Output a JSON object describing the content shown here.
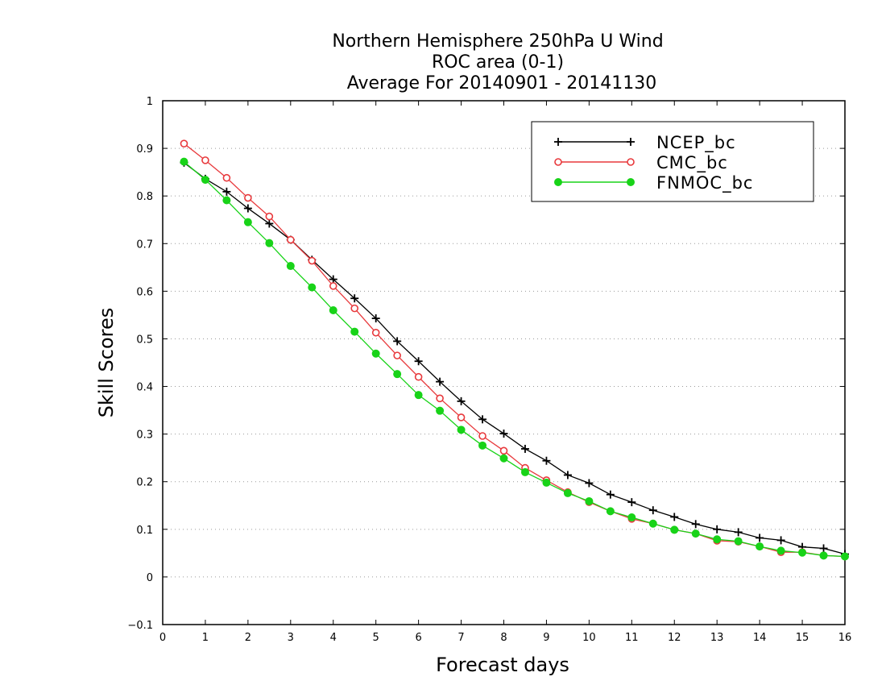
{
  "chart_data": {
    "type": "line",
    "title_lines": [
      "Northern Hemisphere 250hPa U Wind",
      "ROC area (0-1)",
      "Average For 20140901 - 20141130"
    ],
    "xlabel": "Forecast days",
    "ylabel": "Skill Scores",
    "xlim": [
      0,
      16
    ],
    "ylim": [
      -0.1,
      1
    ],
    "x_ticks": [
      0,
      1,
      2,
      3,
      4,
      5,
      6,
      7,
      8,
      9,
      10,
      11,
      12,
      13,
      14,
      15,
      16
    ],
    "y_ticks": [
      -0.1,
      0,
      0.1,
      0.2,
      0.3,
      0.4,
      0.5,
      0.6,
      0.7,
      0.8,
      0.9,
      1
    ],
    "x_tick_labels": [
      "0",
      "1",
      "2",
      "3",
      "4",
      "5",
      "6",
      "7",
      "8",
      "9",
      "10",
      "11",
      "12",
      "13",
      "14",
      "15",
      "16"
    ],
    "y_tick_labels": [
      "−0.1",
      "0",
      "0.1",
      "0.2",
      "0.3",
      "0.4",
      "0.5",
      "0.6",
      "0.7",
      "0.8",
      "0.9",
      "1"
    ],
    "grid": "dotted horizontal",
    "legend_position": "top-right",
    "x": [
      0.5,
      1,
      1.5,
      2,
      2.5,
      3,
      3.5,
      4,
      4.5,
      5,
      5.5,
      6,
      6.5,
      7,
      7.5,
      8,
      8.5,
      9,
      9.5,
      10,
      10.5,
      11,
      11.5,
      12,
      12.5,
      13,
      13.5,
      14,
      14.5,
      15,
      15.5,
      16
    ],
    "series": [
      {
        "name": "NCEP_bc",
        "color": "#000000",
        "marker": "plus",
        "values": [
          0.87,
          0.836,
          0.809,
          0.774,
          0.742,
          0.708,
          0.666,
          0.625,
          0.585,
          0.543,
          0.495,
          0.453,
          0.41,
          0.369,
          0.331,
          0.301,
          0.269,
          0.244,
          0.214,
          0.197,
          0.173,
          0.157,
          0.14,
          0.126,
          0.111,
          0.1,
          0.094,
          0.082,
          0.077,
          0.063,
          0.06,
          0.048
        ]
      },
      {
        "name": "CMC_bc",
        "color": "#e8393c",
        "marker": "open-circle",
        "values": [
          0.91,
          0.875,
          0.838,
          0.796,
          0.757,
          0.708,
          0.664,
          0.611,
          0.564,
          0.513,
          0.465,
          0.42,
          0.375,
          0.335,
          0.296,
          0.265,
          0.229,
          0.203,
          0.178,
          0.157,
          0.138,
          0.122,
          0.112,
          0.099,
          0.091,
          0.076,
          0.074,
          0.064,
          0.052,
          0.052,
          0.045,
          0.043
        ]
      },
      {
        "name": "FNMOC_bc",
        "color": "#18d318",
        "marker": "filled-circle",
        "values": [
          0.872,
          0.834,
          0.791,
          0.745,
          0.701,
          0.653,
          0.608,
          0.56,
          0.515,
          0.469,
          0.426,
          0.382,
          0.349,
          0.309,
          0.276,
          0.249,
          0.22,
          0.198,
          0.176,
          0.159,
          0.138,
          0.125,
          0.112,
          0.099,
          0.091,
          0.079,
          0.075,
          0.064,
          0.055,
          0.051,
          0.045,
          0.043
        ]
      }
    ]
  }
}
